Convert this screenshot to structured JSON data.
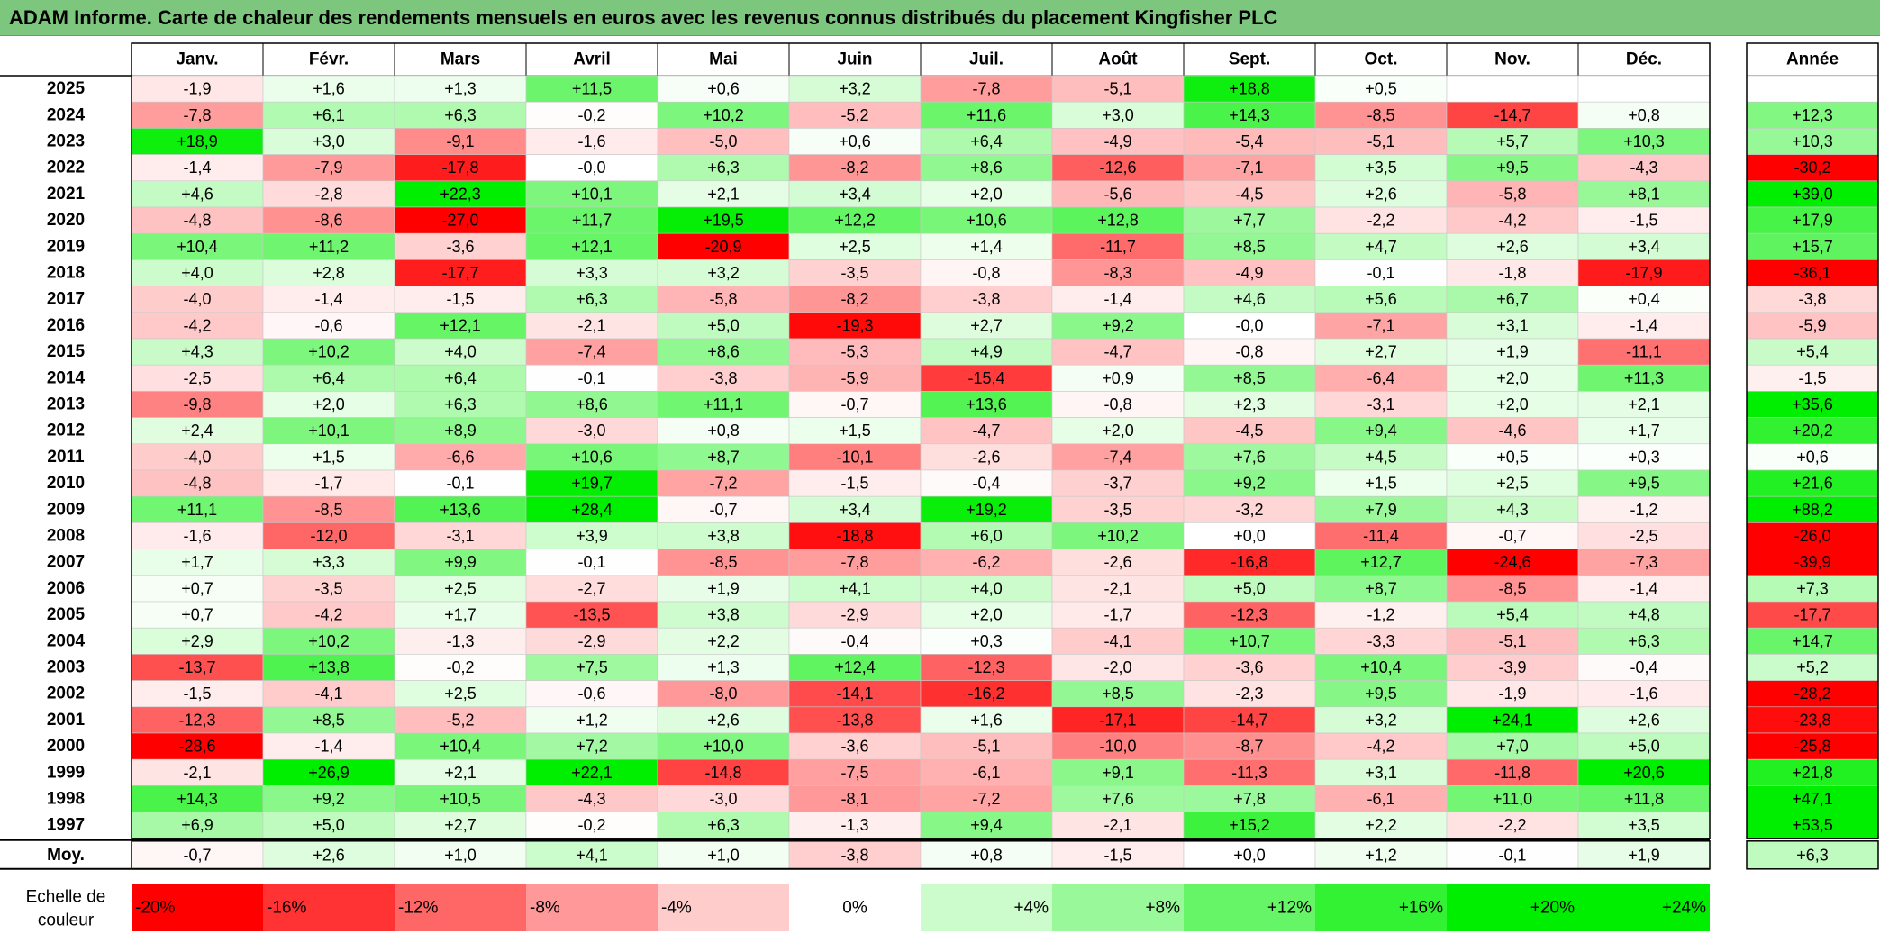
{
  "title": "ADAM Informe. Carte de chaleur des rendements mensuels en euros avec les revenus connus distribués du placement Kingfisher PLC",
  "colors": {
    "title_bg": "#7dc67d",
    "negative": "#ff0000",
    "positive": "#00ee00",
    "neutral": "#ffffff"
  },
  "chart_data": {
    "type": "heatmap",
    "title": "ADAM Informe. Carte de chaleur des rendements mensuels en euros avec les revenus connus distribués du placement Kingfisher PLC",
    "columns": [
      "Janv.",
      "Févr.",
      "Mars",
      "Avril",
      "Mai",
      "Juin",
      "Juil.",
      "Août",
      "Sept.",
      "Oct.",
      "Nov.",
      "Déc."
    ],
    "annual_header": "Année",
    "rows": [
      {
        "year": "2025",
        "values": [
          "-1,9",
          "+1,6",
          "+1,3",
          "+11,5",
          "+0,6",
          "+3,2",
          "-7,8",
          "-5,1",
          "+18,8",
          "+0,5",
          "",
          ""
        ],
        "annual": ""
      },
      {
        "year": "2024",
        "values": [
          "-7,8",
          "+6,1",
          "+6,3",
          "-0,2",
          "+10,2",
          "-5,2",
          "+11,6",
          "+3,0",
          "+14,3",
          "-8,5",
          "-14,7",
          "+0,8"
        ],
        "annual": "+12,3"
      },
      {
        "year": "2023",
        "values": [
          "+18,9",
          "+3,0",
          "-9,1",
          "-1,6",
          "-5,0",
          "+0,6",
          "+6,4",
          "-4,9",
          "-5,4",
          "-5,1",
          "+5,7",
          "+10,3"
        ],
        "annual": "+10,3"
      },
      {
        "year": "2022",
        "values": [
          "-1,4",
          "-7,9",
          "-17,8",
          "-0,0",
          "+6,3",
          "-8,2",
          "+8,6",
          "-12,6",
          "-7,1",
          "+3,5",
          "+9,5",
          "-4,3"
        ],
        "annual": "-30,2"
      },
      {
        "year": "2021",
        "values": [
          "+4,6",
          "-2,8",
          "+22,3",
          "+10,1",
          "+2,1",
          "+3,4",
          "+2,0",
          "-5,6",
          "-4,5",
          "+2,6",
          "-5,8",
          "+8,1"
        ],
        "annual": "+39,0"
      },
      {
        "year": "2020",
        "values": [
          "-4,8",
          "-8,6",
          "-27,0",
          "+11,7",
          "+19,5",
          "+12,2",
          "+10,6",
          "+12,8",
          "+7,7",
          "-2,2",
          "-4,2",
          "-1,5"
        ],
        "annual": "+17,9"
      },
      {
        "year": "2019",
        "values": [
          "+10,4",
          "+11,2",
          "-3,6",
          "+12,1",
          "-20,9",
          "+2,5",
          "+1,4",
          "-11,7",
          "+8,5",
          "+4,7",
          "+2,6",
          "+3,4"
        ],
        "annual": "+15,7"
      },
      {
        "year": "2018",
        "values": [
          "+4,0",
          "+2,8",
          "-17,7",
          "+3,3",
          "+3,2",
          "-3,5",
          "-0,8",
          "-8,3",
          "-4,9",
          "-0,1",
          "-1,8",
          "-17,9"
        ],
        "annual": "-36,1"
      },
      {
        "year": "2017",
        "values": [
          "-4,0",
          "-1,4",
          "-1,5",
          "+6,3",
          "-5,8",
          "-8,2",
          "-3,8",
          "-1,4",
          "+4,6",
          "+5,6",
          "+6,7",
          "+0,4"
        ],
        "annual": "-3,8"
      },
      {
        "year": "2016",
        "values": [
          "-4,2",
          "-0,6",
          "+12,1",
          "-2,1",
          "+5,0",
          "-19,3",
          "+2,7",
          "+9,2",
          "-0,0",
          "-7,1",
          "+3,1",
          "-1,4"
        ],
        "annual": "-5,9"
      },
      {
        "year": "2015",
        "values": [
          "+4,3",
          "+10,2",
          "+4,0",
          "-7,4",
          "+8,6",
          "-5,3",
          "+4,9",
          "-4,7",
          "-0,8",
          "+2,7",
          "+1,9",
          "-11,1"
        ],
        "annual": "+5,4"
      },
      {
        "year": "2014",
        "values": [
          "-2,5",
          "+6,4",
          "+6,4",
          "-0,1",
          "-3,8",
          "-5,9",
          "-15,4",
          "+0,9",
          "+8,5",
          "-6,4",
          "+2,0",
          "+11,3"
        ],
        "annual": "-1,5"
      },
      {
        "year": "2013",
        "values": [
          "-9,8",
          "+2,0",
          "+6,3",
          "+8,6",
          "+11,1",
          "-0,7",
          "+13,6",
          "-0,8",
          "+2,3",
          "-3,1",
          "+2,0",
          "+2,1"
        ],
        "annual": "+35,6"
      },
      {
        "year": "2012",
        "values": [
          "+2,4",
          "+10,1",
          "+8,9",
          "-3,0",
          "+0,8",
          "+1,5",
          "-4,7",
          "+2,0",
          "-4,5",
          "+9,4",
          "-4,6",
          "+1,7"
        ],
        "annual": "+20,2"
      },
      {
        "year": "2011",
        "values": [
          "-4,0",
          "+1,5",
          "-6,6",
          "+10,6",
          "+8,7",
          "-10,1",
          "-2,6",
          "-7,4",
          "+7,6",
          "+4,5",
          "+0,5",
          "+0,3"
        ],
        "annual": "+0,6"
      },
      {
        "year": "2010",
        "values": [
          "-4,8",
          "-1,7",
          "-0,1",
          "+19,7",
          "-7,2",
          "-1,5",
          "-0,4",
          "-3,7",
          "+9,2",
          "+1,5",
          "+2,5",
          "+9,5"
        ],
        "annual": "+21,6"
      },
      {
        "year": "2009",
        "values": [
          "+11,1",
          "-8,5",
          "+13,6",
          "+28,4",
          "-0,7",
          "+3,4",
          "+19,2",
          "-3,5",
          "-3,2",
          "+7,9",
          "+4,3",
          "-1,2"
        ],
        "annual": "+88,2"
      },
      {
        "year": "2008",
        "values": [
          "-1,6",
          "-12,0",
          "-3,1",
          "+3,9",
          "+3,8",
          "-18,8",
          "+6,0",
          "+10,2",
          "+0,0",
          "-11,4",
          "-0,7",
          "-2,5"
        ],
        "annual": "-26,0"
      },
      {
        "year": "2007",
        "values": [
          "+1,7",
          "+3,3",
          "+9,9",
          "-0,1",
          "-8,5",
          "-7,8",
          "-6,2",
          "-2,6",
          "-16,8",
          "+12,7",
          "-24,6",
          "-7,3"
        ],
        "annual": "-39,9"
      },
      {
        "year": "2006",
        "values": [
          "+0,7",
          "-3,5",
          "+2,5",
          "-2,7",
          "+1,9",
          "+4,1",
          "+4,0",
          "-2,1",
          "+5,0",
          "+8,7",
          "-8,5",
          "-1,4"
        ],
        "annual": "+7,3"
      },
      {
        "year": "2005",
        "values": [
          "+0,7",
          "-4,2",
          "+1,7",
          "-13,5",
          "+3,8",
          "-2,9",
          "+2,0",
          "-1,7",
          "-12,3",
          "-1,2",
          "+5,4",
          "+4,8"
        ],
        "annual": "-17,7"
      },
      {
        "year": "2004",
        "values": [
          "+2,9",
          "+10,2",
          "-1,3",
          "-2,9",
          "+2,2",
          "-0,4",
          "+0,3",
          "-4,1",
          "+10,7",
          "-3,3",
          "-5,1",
          "+6,3"
        ],
        "annual": "+14,7"
      },
      {
        "year": "2003",
        "values": [
          "-13,7",
          "+13,8",
          "-0,2",
          "+7,5",
          "+1,3",
          "+12,4",
          "-12,3",
          "-2,0",
          "-3,6",
          "+10,4",
          "-3,9",
          "-0,4"
        ],
        "annual": "+5,2"
      },
      {
        "year": "2002",
        "values": [
          "-1,5",
          "-4,1",
          "+2,5",
          "-0,6",
          "-8,0",
          "-14,1",
          "-16,2",
          "+8,5",
          "-2,3",
          "+9,5",
          "-1,9",
          "-1,6"
        ],
        "annual": "-28,2"
      },
      {
        "year": "2001",
        "values": [
          "-12,3",
          "+8,5",
          "-5,2",
          "+1,2",
          "+2,6",
          "-13,8",
          "+1,6",
          "-17,1",
          "-14,7",
          "+3,2",
          "+24,1",
          "+2,6"
        ],
        "annual": "-23,8"
      },
      {
        "year": "2000",
        "values": [
          "-28,6",
          "-1,4",
          "+10,4",
          "+7,2",
          "+10,0",
          "-3,6",
          "-5,1",
          "-10,0",
          "-8,7",
          "-4,2",
          "+7,0",
          "+5,0"
        ],
        "annual": "-25,8"
      },
      {
        "year": "1999",
        "values": [
          "-2,1",
          "+26,9",
          "+2,1",
          "+22,1",
          "-14,8",
          "-7,5",
          "-6,1",
          "+9,1",
          "-11,3",
          "+3,1",
          "-11,8",
          "+20,6"
        ],
        "annual": "+21,8"
      },
      {
        "year": "1998",
        "values": [
          "+14,3",
          "+9,2",
          "+10,5",
          "-4,3",
          "-3,0",
          "-8,1",
          "-7,2",
          "+7,6",
          "+7,8",
          "-6,1",
          "+11,0",
          "+11,8"
        ],
        "annual": "+47,1"
      },
      {
        "year": "1997",
        "values": [
          "+6,9",
          "+5,0",
          "+2,7",
          "-0,2",
          "+6,3",
          "-1,3",
          "+9,4",
          "-2,1",
          "+15,2",
          "+2,2",
          "-2,2",
          "+3,5"
        ],
        "annual": "+53,5"
      }
    ],
    "average": {
      "label": "Moy.",
      "values": [
        "-0,7",
        "+2,6",
        "+1,0",
        "+4,1",
        "+1,0",
        "-3,8",
        "+0,8",
        "-1,5",
        "+0,0",
        "+1,2",
        "-0,1",
        "+1,9"
      ],
      "annual": "+6,3"
    },
    "scale": {
      "label": "Echelle de couleur",
      "items": [
        "-20%",
        "-16%",
        "-12%",
        "-8%",
        "-4%",
        "0%",
        "+4%",
        "+8%",
        "+12%",
        "+16%",
        "+20%",
        "+24%"
      ],
      "values": [
        -20,
        -16,
        -12,
        -8,
        -4,
        0,
        4,
        8,
        12,
        16,
        20,
        24
      ]
    }
  }
}
